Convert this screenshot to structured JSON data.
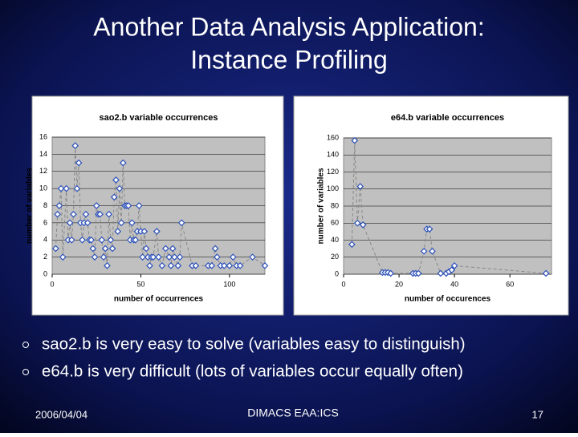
{
  "slide": {
    "title_line1": "Another Data Analysis Application:",
    "title_line2": "Instance Profiling",
    "bullets": [
      "sao2.b is very easy to solve (variables easy to distinguish)",
      "e64.b is very difficult (lots of variables occur equally often)"
    ],
    "footer_left": "2006/04/04",
    "footer_center": "DIMACS EAA:ICS",
    "footer_right": "17"
  },
  "chart_data": [
    {
      "type": "line",
      "title": "sao2.b variable occurrences",
      "x_label": "number of occurrences",
      "y_label": "number of variables",
      "color": "#2a4fb8",
      "x": [
        2,
        3,
        4,
        5,
        6,
        8,
        9,
        10,
        11,
        12,
        13,
        14,
        15,
        16,
        17,
        18,
        19,
        20,
        21,
        22,
        23,
        24,
        25,
        26,
        27,
        28,
        29,
        30,
        31,
        32,
        33,
        34,
        35,
        36,
        37,
        38,
        39,
        40,
        41,
        42,
        43,
        44,
        45,
        46,
        47,
        48,
        49,
        50,
        51,
        52,
        53,
        54,
        55,
        56,
        57,
        59,
        60,
        62,
        64,
        66,
        67,
        68,
        69,
        71,
        72,
        73,
        79,
        81,
        88,
        90,
        92,
        93,
        95,
        97,
        100,
        102,
        104,
        106,
        113,
        120
      ],
      "values": [
        3,
        7,
        8,
        10,
        2,
        10,
        4,
        6,
        4,
        7,
        15,
        10,
        13,
        6,
        4,
        6,
        7,
        6,
        4,
        4,
        3,
        2,
        8,
        7,
        7,
        4,
        2,
        3,
        1,
        7,
        4,
        3,
        9,
        11,
        5,
        10,
        6,
        13,
        8,
        8,
        8,
        4,
        6,
        4,
        4,
        5,
        8,
        5,
        2,
        5,
        3,
        2,
        1,
        2,
        2,
        5,
        2,
        1,
        3,
        2,
        1,
        3,
        2,
        1,
        2,
        6,
        1,
        1,
        1,
        1,
        3,
        2,
        1,
        1,
        1,
        2,
        1,
        1,
        2,
        1
      ],
      "xlim": [
        0,
        120
      ],
      "xticks": [
        0,
        50,
        100
      ],
      "ylim": [
        0,
        16
      ],
      "yticks": [
        0,
        2,
        4,
        6,
        8,
        10,
        12,
        14,
        16
      ],
      "grid": true
    },
    {
      "type": "line",
      "title": "e64.b variable occurrences",
      "x_label": "number of occurences",
      "y_label": "number of variables",
      "color": "#2a4fb8",
      "x": [
        3,
        4,
        5,
        6,
        7,
        14,
        15,
        16,
        17,
        25,
        26,
        27,
        29,
        30,
        31,
        32,
        35,
        37,
        38,
        39,
        40,
        73
      ],
      "values": [
        35,
        157,
        60,
        103,
        58,
        2,
        2,
        2,
        1,
        1,
        1,
        1,
        27,
        53,
        53,
        27,
        1,
        1,
        3,
        5,
        10,
        1
      ],
      "xlim": [
        0,
        75
      ],
      "xticks": [
        0,
        20,
        40,
        60
      ],
      "ylim": [
        0,
        160
      ],
      "yticks": [
        0,
        20,
        40,
        60,
        80,
        100,
        120,
        140,
        160
      ],
      "grid": true
    }
  ]
}
